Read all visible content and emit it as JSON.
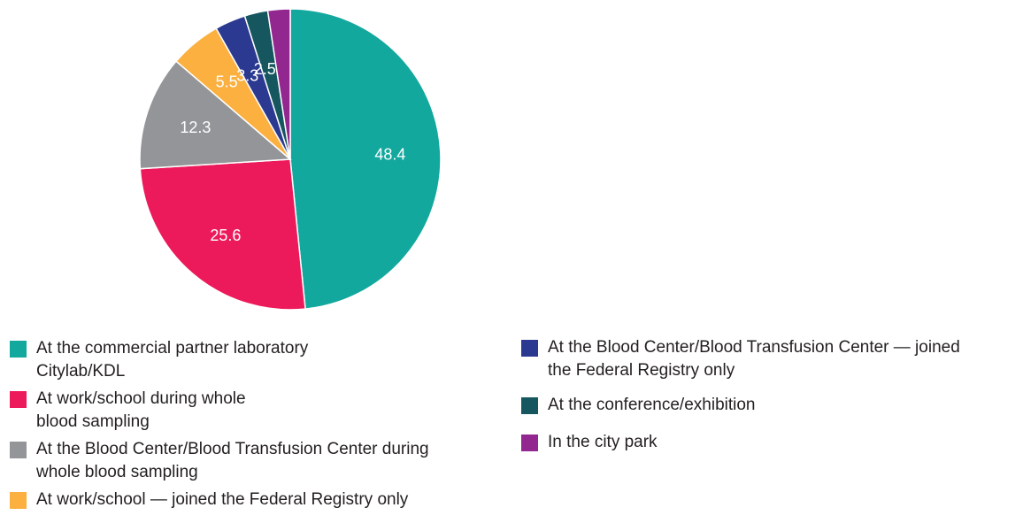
{
  "chart_data": {
    "type": "pie",
    "slices": [
      {
        "label": "At the commercial partner laboratory Citylab/KDL",
        "value": 48.4,
        "color": "#13a89e"
      },
      {
        "label": "At work/school during whole blood sampling",
        "value": 25.6,
        "color": "#ed1a5b"
      },
      {
        "label": "At the Blood Center/Blood Transfusion Center during whole blood sampling",
        "value": 12.3,
        "color": "#939598"
      },
      {
        "label": "At work/school — joined the Federal Registry only",
        "value": 5.5,
        "color": "#fbb040"
      },
      {
        "label": "At the Blood Center/Blood Transfusion Center — joined the Federal Registry only",
        "value": 3.3,
        "color": "#2b3990"
      },
      {
        "label": "At the conference/exhibition",
        "value": 2.5,
        "color": "#16565f"
      },
      {
        "label": "In the city park",
        "value": 2.4,
        "color": "#92278f"
      }
    ],
    "data_labels": [
      "48.4",
      "25.6",
      "12.3",
      "5.5",
      "3.3",
      "2.5",
      ""
    ],
    "legend_placement": "bottom"
  },
  "legend": {
    "left": [
      {
        "lines": [
          "At the commercial partner laboratory",
          "Citylab/KDL"
        ],
        "color": "#13a89e"
      },
      {
        "lines": [
          "At work/school during whole",
          "blood sampling"
        ],
        "color": "#ed1a5b"
      },
      {
        "lines": [
          "At the Blood Center/Blood Transfusion Center during",
          "whole blood sampling"
        ],
        "color": "#939598"
      },
      {
        "lines": [
          "At work/school — joined the Federal Registry only"
        ],
        "color": "#fbb040"
      }
    ],
    "right": [
      {
        "lines": [
          "At the Blood Center/Blood Transfusion Center — joined",
          "the Federal Registry only"
        ],
        "color": "#2b3990"
      },
      {
        "lines": [
          "At the conference/exhibition"
        ],
        "color": "#16565f"
      },
      {
        "lines": [
          "In the city park"
        ],
        "color": "#92278f"
      }
    ]
  }
}
